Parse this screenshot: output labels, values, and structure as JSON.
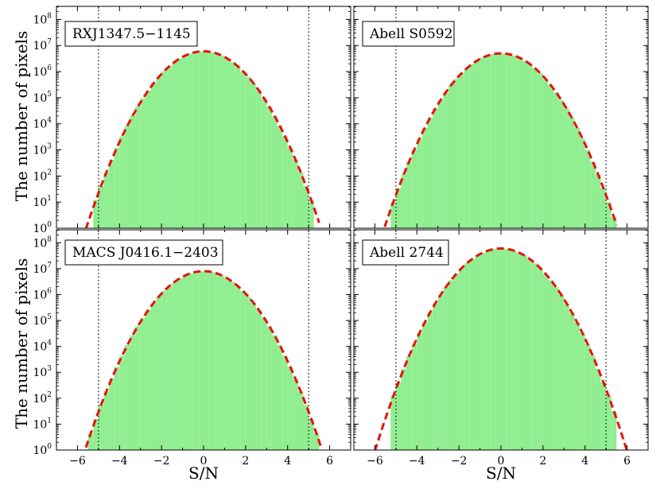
{
  "figure": {
    "ylabel": "The number of pixels",
    "xlabel": "S/N"
  },
  "colors": {
    "histogram": "#90ee90",
    "fit": "#e8120c",
    "threshold": "#000000"
  },
  "chart_data": [
    {
      "type": "bar",
      "label": "RXJ1347.5−1145",
      "xlim": [
        -7,
        7
      ],
      "ylim_log10": [
        0,
        8.5
      ],
      "y_scale": "log",
      "xticks": [
        -6,
        -4,
        -2,
        0,
        2,
        4,
        6
      ],
      "yticks_exp": [
        0,
        1,
        2,
        3,
        4,
        5,
        6,
        7,
        8
      ],
      "thresholds": [
        -5,
        5
      ],
      "hist_range": [
        -5.25,
        5.25
      ],
      "bin_width": 0.25,
      "fit": {
        "peak": 6000000,
        "sigma": 1.0,
        "x_range": [
          -5.6,
          5.5
        ]
      }
    },
    {
      "type": "bar",
      "label": "Abell S0592",
      "xlim": [
        -7,
        7
      ],
      "ylim_log10": [
        0,
        8.5
      ],
      "y_scale": "log",
      "xticks": [
        -6,
        -4,
        -2,
        0,
        2,
        4,
        6
      ],
      "yticks_exp": [
        0,
        1,
        2,
        3,
        4,
        5,
        6,
        7,
        8
      ],
      "thresholds": [
        -5,
        5
      ],
      "hist_range": [
        -5.25,
        5.5
      ],
      "bin_width": 0.25,
      "fit": {
        "peak": 5000000,
        "sigma": 1.0,
        "x_range": [
          -5.7,
          5.5
        ]
      }
    },
    {
      "type": "bar",
      "label": "MACS J0416.1−2403",
      "xlim": [
        -7,
        7
      ],
      "ylim_log10": [
        0,
        8.5
      ],
      "y_scale": "log",
      "xticks": [
        -6,
        -4,
        -2,
        0,
        2,
        4,
        6
      ],
      "yticks_exp": [
        0,
        1,
        2,
        3,
        4,
        5,
        6,
        7,
        8
      ],
      "thresholds": [
        -5,
        5
      ],
      "hist_range": [
        -5.5,
        5.5
      ],
      "bin_width": 0.25,
      "fit": {
        "peak": 8000000,
        "sigma": 1.0,
        "x_range": [
          -5.6,
          5.6
        ]
      }
    },
    {
      "type": "bar",
      "label": "Abell 2744",
      "xlim": [
        -7,
        7
      ],
      "ylim_log10": [
        0,
        8.5
      ],
      "y_scale": "log",
      "xticks": [
        -6,
        -4,
        -2,
        0,
        2,
        4,
        6
      ],
      "yticks_exp": [
        0,
        1,
        2,
        3,
        4,
        5,
        6,
        7,
        8
      ],
      "thresholds": [
        -5,
        5
      ],
      "hist_range": [
        -5.25,
        5.5
      ],
      "bin_width": 0.25,
      "fit": {
        "peak": 60000000,
        "sigma": 1.0,
        "x_range": [
          -6.0,
          6.0
        ]
      }
    }
  ]
}
